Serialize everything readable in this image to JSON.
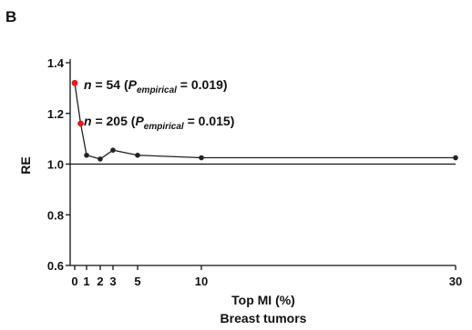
{
  "panel_label": "B",
  "chart_data": {
    "type": "line",
    "ylabel": "RE",
    "xlabel_line1": "Top MI (%)",
    "xlabel_line2": "Breast tumors",
    "ylim": [
      0.6,
      1.4
    ],
    "yticks": [
      0.6,
      0.8,
      1.0,
      1.2,
      1.4
    ],
    "ytick_labels": [
      "0.6",
      "0.8",
      "1.0",
      "1.2",
      "1.4"
    ],
    "xticks": [
      0,
      1,
      2,
      3,
      5,
      10,
      30
    ],
    "xtick_labels": [
      "0",
      "1",
      "2",
      "3",
      "5",
      "10",
      "30"
    ],
    "reference_line": 1.0,
    "series": [
      {
        "points": [
          {
            "x": 0.0,
            "y": 1.32,
            "highlight": true
          },
          {
            "x": 0.5,
            "y": 1.16,
            "highlight": true
          },
          {
            "x": 1,
            "y": 1.035
          },
          {
            "x": 2,
            "y": 1.02
          },
          {
            "x": 3,
            "y": 1.055
          },
          {
            "x": 5,
            "y": 1.035
          },
          {
            "x": 10,
            "y": 1.025
          },
          {
            "x": 30,
            "y": 1.025
          }
        ]
      }
    ],
    "annotations": [
      {
        "n_label": "n",
        "text": " = 54 (",
        "p_label": "P",
        "p_subscript": "empirical",
        "p_text": " = 0.019)"
      },
      {
        "n_label": "n",
        "text": " = 205 (",
        "p_label": "P",
        "p_subscript": "empirical",
        "p_text": " = 0.015)"
      }
    ],
    "colors": {
      "line": "#222222",
      "point": "#222222",
      "highlight": "#e31a1c",
      "axis": "#111111"
    }
  }
}
